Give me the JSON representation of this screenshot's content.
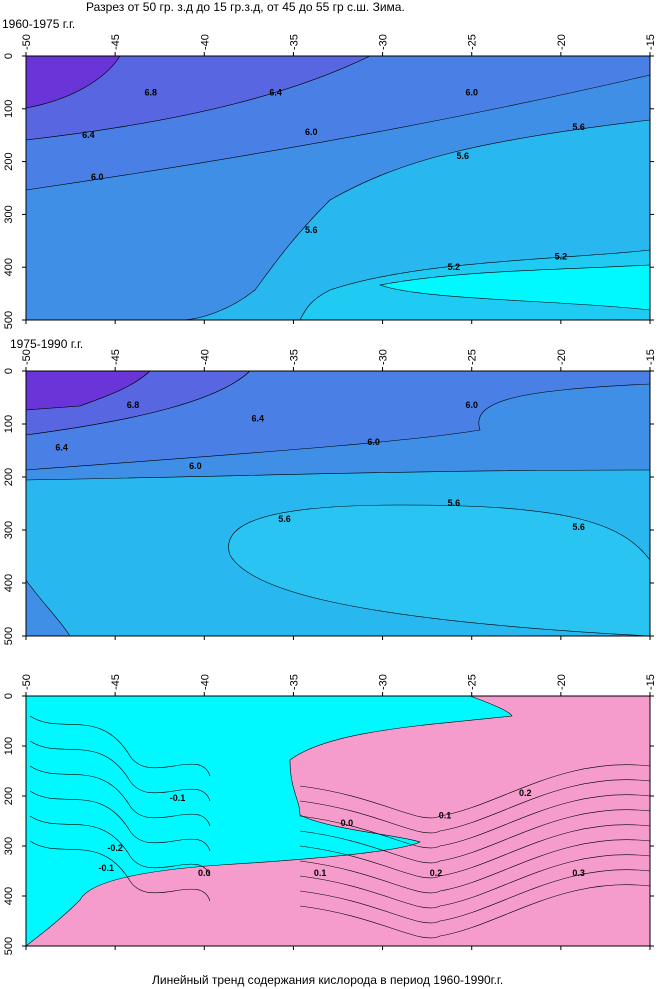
{
  "header": {
    "title": "Разрез от 50 гр. з.д до 15 гр.з.д, от 45 до 55 гр с.ш. Зима."
  },
  "footer": {
    "caption": "Линейный тренд содержания кислорода в период 1960-1990г.г."
  },
  "colors": {
    "purple": "#6a35d8",
    "blue": "#3f8fe6",
    "lightblue": "#29b7f0",
    "cyan": "#00f8ff",
    "pink": "#f59ccc",
    "line": "#000000"
  },
  "chart_data": [
    {
      "type": "heatmap",
      "subtitle": "1960-1975 г.г.",
      "x_ticks": [
        -50,
        -45,
        -40,
        -35,
        -30,
        -25,
        -20,
        -15
      ],
      "y_ticks": [
        0,
        100,
        200,
        300,
        400,
        500
      ],
      "xlim": [
        -50,
        -15
      ],
      "ylim": [
        0,
        500
      ],
      "contour_labels": [
        {
          "x": -43,
          "y": 75,
          "text": "6.8"
        },
        {
          "x": -36,
          "y": 75,
          "text": "6.4"
        },
        {
          "x": -25,
          "y": 75,
          "text": "6.0"
        },
        {
          "x": -46.5,
          "y": 155,
          "text": "6.4"
        },
        {
          "x": -34,
          "y": 150,
          "text": "6.0"
        },
        {
          "x": -46,
          "y": 235,
          "text": "6.0"
        },
        {
          "x": -25.5,
          "y": 195,
          "text": "5.6"
        },
        {
          "x": -19,
          "y": 140,
          "text": "5.6"
        },
        {
          "x": -34,
          "y": 335,
          "text": "5.6"
        },
        {
          "x": -26,
          "y": 405,
          "text": "5.2"
        },
        {
          "x": -20,
          "y": 385,
          "text": "5.2"
        }
      ]
    },
    {
      "type": "heatmap",
      "subtitle": "1975-1990 г.г.",
      "x_ticks": [
        -50,
        -45,
        -40,
        -35,
        -30,
        -25,
        -20,
        -15
      ],
      "y_ticks": [
        0,
        100,
        200,
        300,
        400,
        500
      ],
      "xlim": [
        -50,
        -15
      ],
      "ylim": [
        0,
        500
      ],
      "contour_labels": [
        {
          "x": -44,
          "y": 70,
          "text": "6.8"
        },
        {
          "x": -37,
          "y": 95,
          "text": "6.4"
        },
        {
          "x": -25,
          "y": 70,
          "text": "6.0"
        },
        {
          "x": -48,
          "y": 150,
          "text": "6.4"
        },
        {
          "x": -30.5,
          "y": 140,
          "text": "6.0"
        },
        {
          "x": -40.5,
          "y": 185,
          "text": "6.0"
        },
        {
          "x": -35.5,
          "y": 285,
          "text": "5.6"
        },
        {
          "x": -26,
          "y": 255,
          "text": "5.6"
        },
        {
          "x": -19,
          "y": 300,
          "text": "5.6"
        }
      ]
    },
    {
      "type": "heatmap",
      "subtitle": "",
      "x_ticks": [
        -50,
        -45,
        -40,
        -35,
        -30,
        -25,
        -20,
        -15
      ],
      "y_ticks": [
        0,
        100,
        200,
        300,
        400,
        500
      ],
      "xlim": [
        -50,
        -15
      ],
      "ylim": [
        0,
        500
      ],
      "contour_labels": [
        {
          "x": -41.5,
          "y": 210,
          "text": "-0.1"
        },
        {
          "x": -45,
          "y": 310,
          "text": "-0.2"
        },
        {
          "x": -45.5,
          "y": 350,
          "text": "-0.1"
        },
        {
          "x": -40,
          "y": 360,
          "text": "0.0"
        },
        {
          "x": -32,
          "y": 260,
          "text": "0.0"
        },
        {
          "x": -33.5,
          "y": 360,
          "text": "0.1"
        },
        {
          "x": -26.5,
          "y": 245,
          "text": "0.1"
        },
        {
          "x": -27,
          "y": 360,
          "text": "0.2"
        },
        {
          "x": -22,
          "y": 200,
          "text": "0.2"
        },
        {
          "x": -19,
          "y": 360,
          "text": "0.3"
        }
      ]
    }
  ]
}
